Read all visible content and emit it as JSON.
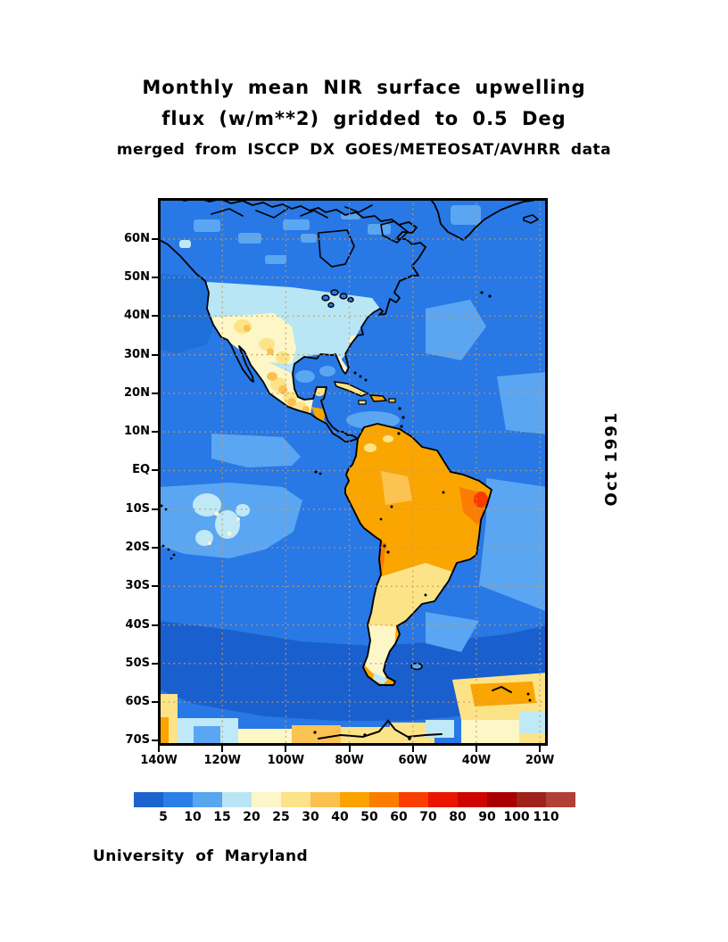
{
  "title": {
    "line1": "Monthly mean NIR surface upwelling",
    "line2": "flux (w/m**2) gridded to 0.5 Deg",
    "line3": "merged from ISCCP DX GOES/METEOSAT/AVHRR data"
  },
  "date_label": "Oct 1991",
  "credit": "University of Maryland",
  "axes": {
    "lat": [
      {
        "label": "60N",
        "deg": 60
      },
      {
        "label": "50N",
        "deg": 50
      },
      {
        "label": "40N",
        "deg": 40
      },
      {
        "label": "30N",
        "deg": 30
      },
      {
        "label": "20N",
        "deg": 20
      },
      {
        "label": "10N",
        "deg": 10
      },
      {
        "label": "EQ",
        "deg": 0
      },
      {
        "label": "10S",
        "deg": -10
      },
      {
        "label": "20S",
        "deg": -20
      },
      {
        "label": "30S",
        "deg": -30
      },
      {
        "label": "40S",
        "deg": -40
      },
      {
        "label": "50S",
        "deg": -50
      },
      {
        "label": "60S",
        "deg": -60
      },
      {
        "label": "70S",
        "deg": -70
      }
    ],
    "lon": [
      {
        "label": "140W",
        "deg": -140
      },
      {
        "label": "120W",
        "deg": -120
      },
      {
        "label": "100W",
        "deg": -100
      },
      {
        "label": "80W",
        "deg": -80
      },
      {
        "label": "60W",
        "deg": -60
      },
      {
        "label": "40W",
        "deg": -40
      },
      {
        "label": "20W",
        "deg": -20
      }
    ]
  },
  "colorbar": {
    "values": [
      "5",
      "10",
      "15",
      "20",
      "25",
      "30",
      "40",
      "50",
      "60",
      "70",
      "80",
      "90",
      "100",
      "110"
    ],
    "colors": [
      "#1b64cd",
      "#2b7fe9",
      "#58a5f0",
      "#b9e6f5",
      "#fdf6c8",
      "#fce288",
      "#fbc14f",
      "#fba300",
      "#fb7d00",
      "#fa3e00",
      "#ea1500",
      "#cc0500",
      "#a80000",
      "#9e221b",
      "#b04036"
    ]
  },
  "chart_data": {
    "type": "heatmap",
    "title": "Monthly mean NIR surface upwelling flux (w/m**2) gridded to 0.5 Deg",
    "subtitle": "merged from ISCCP DX GOES/METEOSAT/AVHRR data",
    "date": "Oct 1991",
    "units": "w/m**2",
    "scale_values": [
      5,
      10,
      15,
      20,
      25,
      30,
      40,
      50,
      60,
      70,
      80,
      90,
      100,
      110
    ],
    "lat_range": [
      "70S",
      "70N"
    ],
    "lon_range": [
      "140W",
      "20W"
    ],
    "legend_position": "bottom",
    "grid": "dotted"
  }
}
